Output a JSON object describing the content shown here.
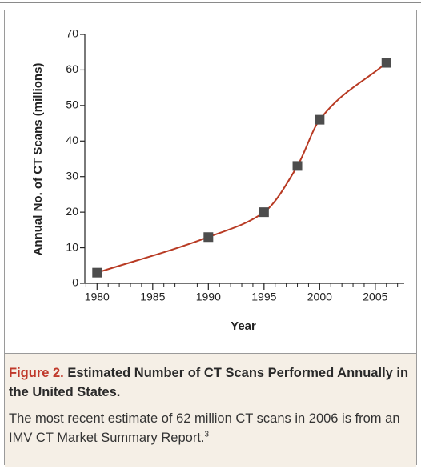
{
  "chart_data": {
    "type": "line",
    "x_label": "Year",
    "y_label": "Annual No. of CT Scans (millions)",
    "x": [
      1980,
      1990,
      1995,
      1998,
      2000,
      2006
    ],
    "series": [
      {
        "color": "#b83a23",
        "marker_color": "#4d4d4d",
        "values": [
          3,
          13,
          20,
          33,
          46,
          62
        ]
      }
    ],
    "xlim": [
      1978.9,
      2007.6
    ],
    "ylim": [
      0,
      70
    ],
    "xticks": [
      1980,
      1985,
      1990,
      1995,
      2000,
      2005
    ],
    "xminorticks": [
      1979,
      1981,
      1982,
      1983,
      1984,
      1986,
      1987,
      1988,
      1989,
      1991,
      1992,
      1993,
      1994,
      1996,
      1997,
      1998,
      1999,
      2001,
      2002,
      2003,
      2004,
      2006,
      2007
    ],
    "yticks": [
      0,
      10,
      20,
      30,
      40,
      50,
      60,
      70
    ],
    "smooth": true,
    "caption": {
      "label": "Figure 2.",
      "title": "Estimated Number of CT Scans Performed Annually in the United States.",
      "text": "The most recent estimate of 62 million CT scans in 2006 is from an IMV CT Market Summary Report.",
      "ref": "3"
    }
  }
}
